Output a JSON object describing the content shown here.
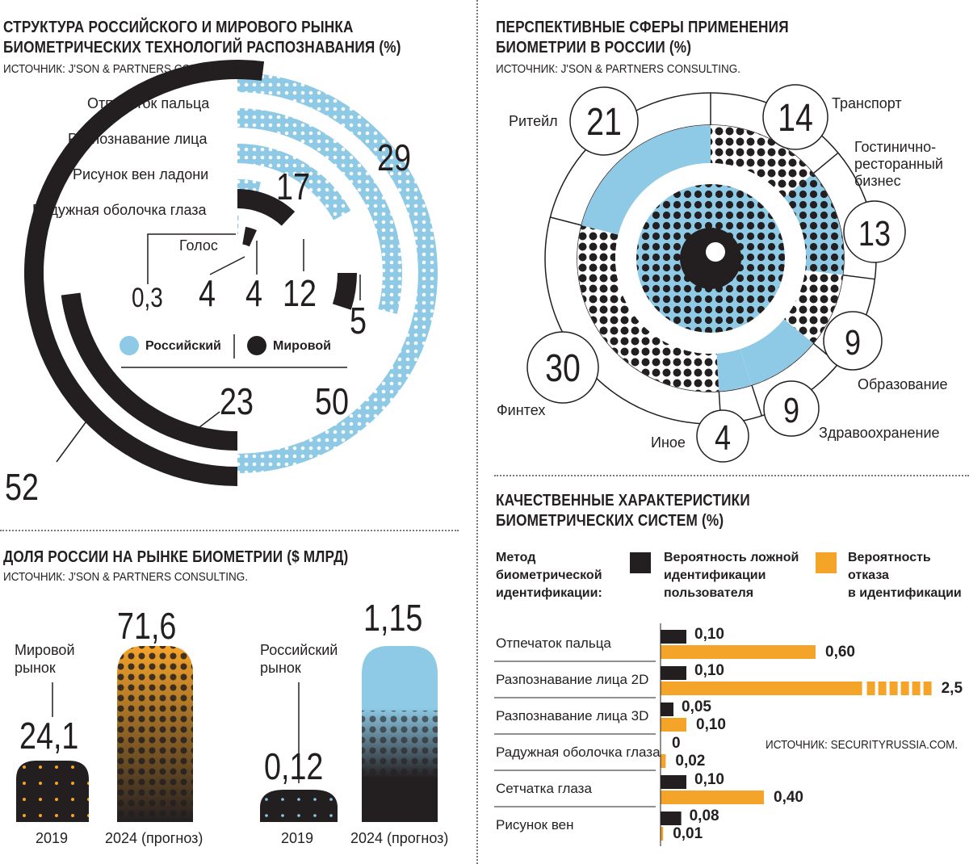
{
  "colors": {
    "blue": "#8ecae6",
    "black": "#231f20",
    "orange": "#f5a42a"
  },
  "panel1": {
    "title_line1": "СТРУКТУРА РОССИЙСКОГО И МИРОВОГО РЫНКА",
    "title_line2": "БИОМЕТРИЧЕСКИХ ТЕХНОЛОГИЙ РАСПОЗНАВАНИЯ (%)",
    "source": "ИСТОЧНИК: J'SON & PARTNERS CONSULTING.",
    "legend_russian": "Российский",
    "legend_world": "Мировой"
  },
  "panel2": {
    "title_line1": "ПЕРСПЕКТИВНЫЕ СФЕРЫ ПРИМЕНЕНИЯ",
    "title_line2": "БИОМЕТРИИ В РОССИИ (%)",
    "source": "ИСТОЧНИК: J'SON & PARTNERS CONSULTING."
  },
  "panel3": {
    "title": "ДОЛЯ РОССИИ НА РЫНКЕ БИОМЕТРИИ ($ МЛРД)",
    "source": "ИСТОЧНИК: J'SON & PARTNERS CONSULTING.",
    "world_label_1": "Мировой",
    "world_label_2": "рынок",
    "ru_label_1": "Российский",
    "ru_label_2": "рынок"
  },
  "panel4": {
    "title_line1": "КАЧЕСТВЕННЫЕ ХАРАКТЕРИСТИКИ",
    "title_line2": "БИОМЕТРИЧЕСКИХ СИСТЕМ (%)",
    "col_method_1": "Метод",
    "col_method_2": "биометрической",
    "col_method_3": "идентификации:",
    "col_far_1": "Вероятность ложной",
    "col_far_2": "идентификации",
    "col_far_3": "пользователя",
    "col_frr_1": "Вероятность",
    "col_frr_2": "отказа",
    "col_frr_3": "в идентификации",
    "source": "ИСТОЧНИК:  SECURITYRUSSIA.COM."
  },
  "chart_data": [
    {
      "type": "radial-bar",
      "title": "СТРУКТУРА РОССИЙСКОГО И МИРОВОГО РЫНКА БИОМЕТРИЧЕСКИХ ТЕХНОЛОГИЙ РАСПОЗНАВАНИЯ (%)",
      "categories": [
        "Отпечаток пальца",
        "Разпознавание лица",
        "Рисунок вен ладони",
        "Радужная оболочка глаза",
        "Голос"
      ],
      "series": [
        {
          "name": "Российский",
          "values": [
            "50",
            "29",
            "17",
            "4",
            "0,3"
          ]
        },
        {
          "name": "Мировой",
          "values": [
            "52",
            "23",
            "5",
            "12",
            "4"
          ]
        }
      ]
    },
    {
      "type": "pie",
      "title": "ПЕРСПЕКТИВНЫЕ СФЕРЫ ПРИМЕНЕНИЯ БИОМЕТРИИ В РОССИИ (%)",
      "categories": [
        "Ритейл",
        "Транспорт",
        "Гостинично-ресторанный бизнес",
        "Образование",
        "Здравоохранение",
        "Иное",
        "Финтех"
      ],
      "values": [
        21,
        14,
        13,
        9,
        9,
        4,
        30
      ],
      "labels": {
        "retail": "Ритейл",
        "transport": "Транспорт",
        "hotel_1": "Гостинично-",
        "hotel_2": "ресторанный",
        "hotel_3": "бизнес",
        "edu": "Образование",
        "health": "Здравоохранение",
        "other": "Иное",
        "fintech": "Финтех"
      }
    },
    {
      "type": "bar",
      "title": "ДОЛЯ РОССИИ НА РЫНКЕ БИОМЕТРИИ ($ МЛРД)",
      "categories": [
        "2019",
        "2024 (прогноз)"
      ],
      "series": [
        {
          "name": "Мировой рынок",
          "values": [
            "24,1",
            "71,6"
          ]
        },
        {
          "name": "Российский рынок",
          "values": [
            "0,12",
            "1,15"
          ]
        }
      ]
    },
    {
      "type": "bar",
      "title": "КАЧЕСТВЕННЫЕ ХАРАКТЕРИСТИКИ БИОМЕТРИЧЕСКИХ СИСТЕМ (%)",
      "categories": [
        "Отпечаток пальца",
        "Разпознавание лица 2D",
        "Разпознавание лица 3D",
        "Радужная оболочка глаза",
        "Сетчатка глаза",
        "Рисунок вен"
      ],
      "series": [
        {
          "name": "Вероятность ложной идентификации пользователя",
          "values": [
            "0,10",
            "0,10",
            "0,05",
            "0",
            "0,10",
            "0,08"
          ],
          "numeric": [
            0.1,
            0.1,
            0.05,
            0,
            0.1,
            0.08
          ]
        },
        {
          "name": "Вероятность отказа в идентификации",
          "values": [
            "0,60",
            "2,5",
            "0,10",
            "0,02",
            "0,40",
            "0,01"
          ],
          "numeric": [
            0.6,
            2.5,
            0.1,
            0.02,
            0.4,
            0.01
          ]
        }
      ]
    }
  ]
}
